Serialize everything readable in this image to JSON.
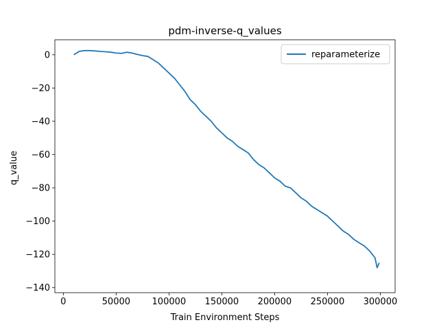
{
  "chart_data": {
    "type": "line",
    "title": "pdm-inverse-q_values",
    "xlabel": "Train Environment Steps",
    "ylabel": "q_value",
    "xlim": [
      -8000,
      314000
    ],
    "ylim": [
      -143,
      9
    ],
    "xticks": [
      0,
      50000,
      100000,
      150000,
      200000,
      250000,
      300000
    ],
    "yticks": [
      0,
      -20,
      -40,
      -60,
      -80,
      -100,
      -120,
      -140
    ],
    "legend_position": "top-right",
    "colors": {
      "series": "#1f77b4"
    },
    "series": [
      {
        "name": "reparameterize",
        "x": [
          10000,
          15000,
          20000,
          25000,
          30000,
          35000,
          40000,
          45000,
          50000,
          55000,
          60000,
          65000,
          70000,
          75000,
          80000,
          85000,
          90000,
          95000,
          100000,
          105000,
          110000,
          115000,
          120000,
          125000,
          130000,
          135000,
          140000,
          145000,
          150000,
          155000,
          160000,
          165000,
          170000,
          175000,
          180000,
          185000,
          190000,
          195000,
          200000,
          205000,
          210000,
          215000,
          220000,
          225000,
          230000,
          235000,
          240000,
          245000,
          250000,
          255000,
          260000,
          265000,
          270000,
          275000,
          280000,
          285000,
          290000,
          295000,
          297000,
          299000
        ],
        "y": [
          0,
          2,
          2.5,
          2.5,
          2.3,
          2,
          1.8,
          1.5,
          1,
          0.8,
          1.5,
          1,
          0.2,
          -0.5,
          -1,
          -3,
          -5,
          -8,
          -11,
          -14,
          -18,
          -22,
          -27,
          -30,
          -34,
          -37,
          -40,
          -44,
          -47,
          -50,
          -52,
          -55,
          -57,
          -59,
          -63,
          -66,
          -68,
          -71,
          -74,
          -76,
          -79,
          -80,
          -83,
          -86,
          -88,
          -91,
          -93,
          -95,
          -97,
          -100,
          -103,
          -106,
          -108,
          -111,
          -113,
          -115,
          -118,
          -122,
          -128,
          -125
        ]
      }
    ]
  }
}
